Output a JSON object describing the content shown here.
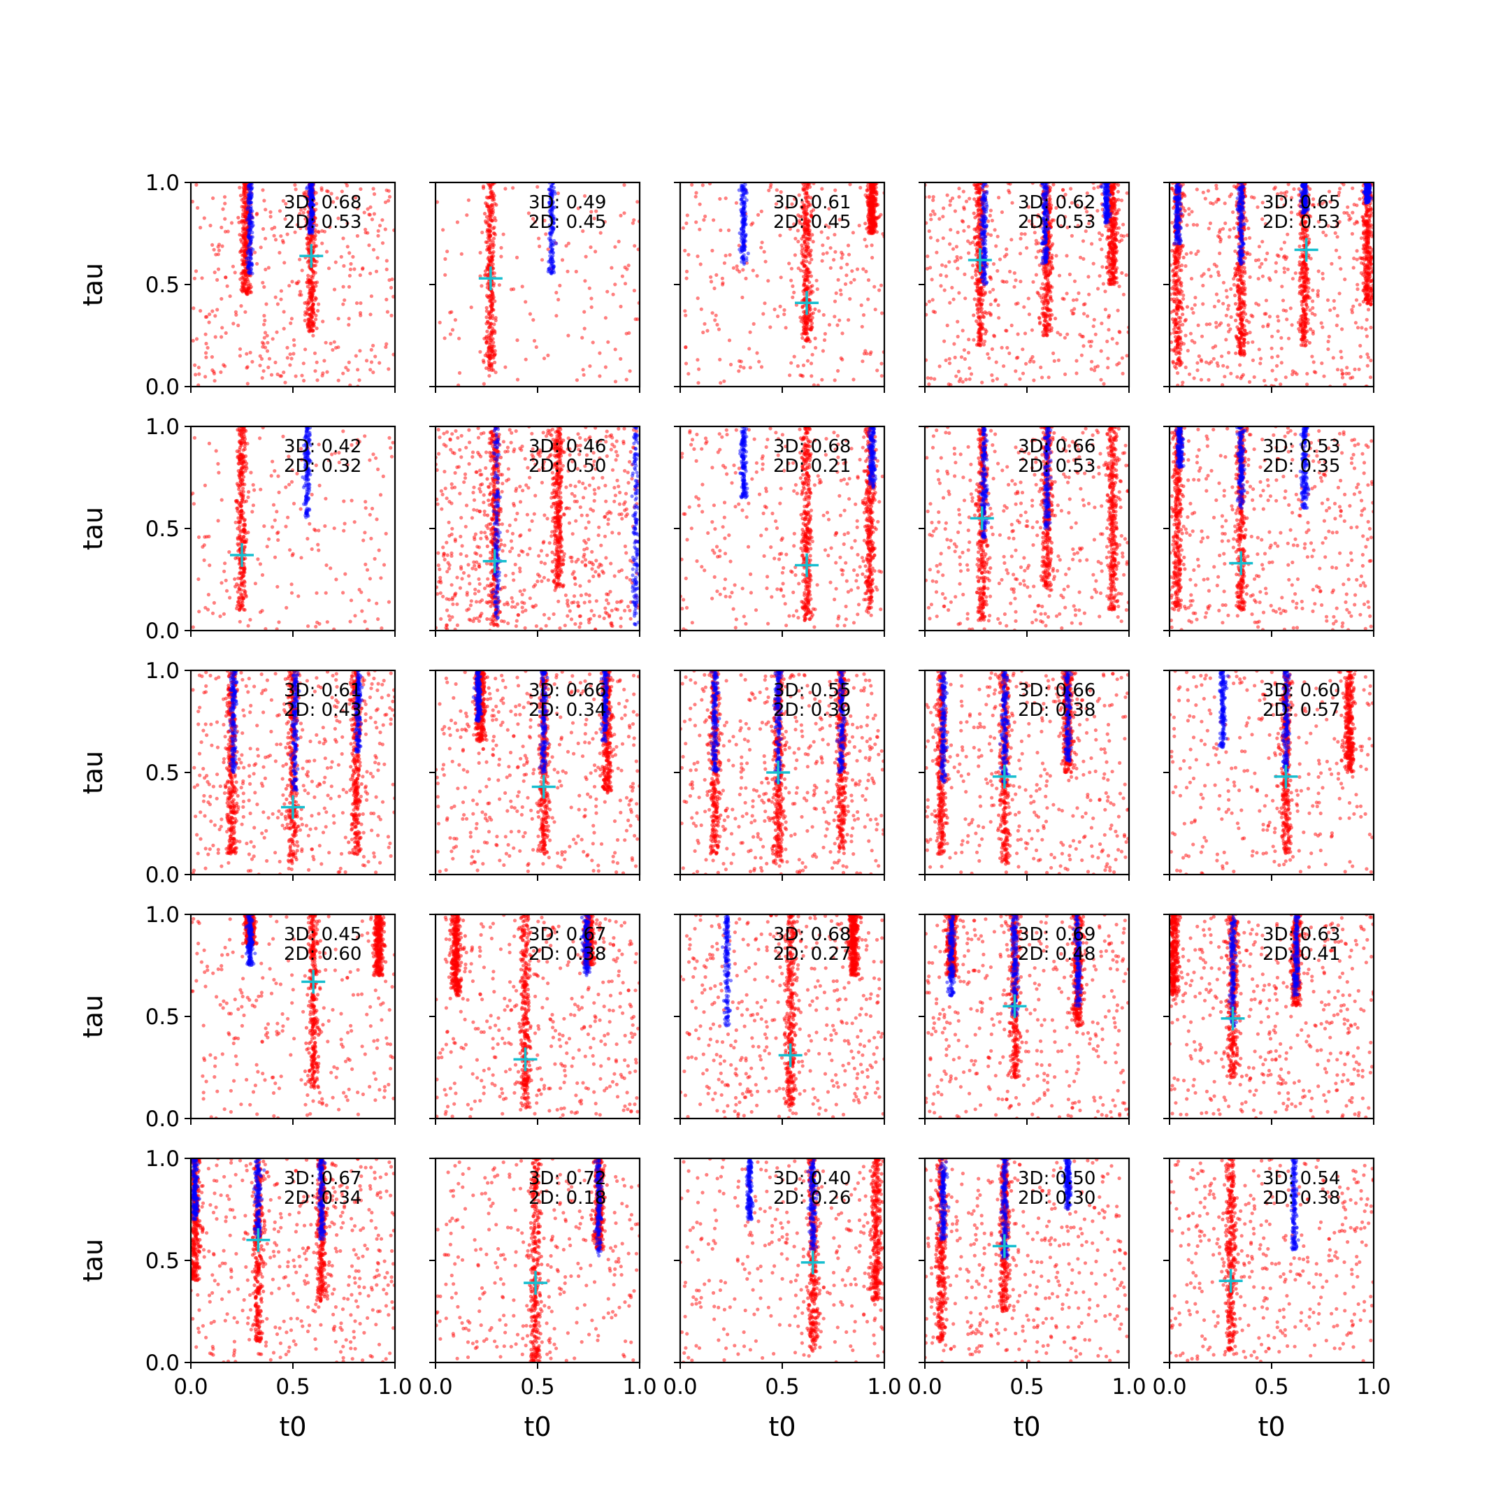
{
  "chart_data": {
    "type": "scatter",
    "grid_rows": 5,
    "grid_cols": 5,
    "xlabel": "t0",
    "ylabel": "tau",
    "xlim": [
      0,
      1
    ],
    "ylim": [
      0,
      1
    ],
    "xticks": [
      "0.0",
      "0.5",
      "1.0"
    ],
    "yticks": [
      "0.0",
      "0.5",
      "1.0"
    ],
    "colors": {
      "red_points": "#ff0000",
      "blue_points": "#0000ff",
      "marker": "#17becf"
    },
    "panels": [
      {
        "score_3d": "3D: 0.68",
        "score_2d": "2D: 0.53",
        "marker": [
          0.59,
          0.64
        ],
        "red_columns": [
          [
            0.27,
            0.45
          ],
          [
            0.59,
            0.27
          ]
        ],
        "blue_columns": [
          [
            0.29,
            0.55
          ],
          [
            0.59,
            0.75
          ]
        ],
        "red_scatter": 0.25
      },
      {
        "score_3d": "3D: 0.49",
        "score_2d": "2D: 0.45",
        "marker": [
          0.27,
          0.53
        ],
        "red_columns": [
          [
            0.27,
            0.08
          ]
        ],
        "blue_columns": [
          [
            0.57,
            0.55
          ]
        ],
        "red_scatter": 0.02
      },
      {
        "score_3d": "3D: 0.61",
        "score_2d": "2D: 0.45",
        "marker": [
          0.62,
          0.41
        ],
        "red_columns": [
          [
            0.62,
            0.22
          ],
          [
            0.94,
            0.75
          ]
        ],
        "blue_columns": [
          [
            0.31,
            0.6
          ]
        ],
        "red_scatter": 0.15
      },
      {
        "score_3d": "3D: 0.62",
        "score_2d": "2D: 0.53",
        "marker": [
          0.27,
          0.62
        ],
        "red_columns": [
          [
            0.27,
            0.2
          ],
          [
            0.6,
            0.25
          ],
          [
            0.92,
            0.5
          ]
        ],
        "blue_columns": [
          [
            0.29,
            0.5
          ],
          [
            0.59,
            0.6
          ],
          [
            0.89,
            0.8
          ]
        ],
        "red_scatter": 0.3
      },
      {
        "score_3d": "3D: 0.65",
        "score_2d": "2D: 0.53",
        "marker": [
          0.67,
          0.67
        ],
        "red_columns": [
          [
            0.04,
            0.1
          ],
          [
            0.35,
            0.15
          ],
          [
            0.66,
            0.2
          ],
          [
            0.97,
            0.4
          ]
        ],
        "blue_columns": [
          [
            0.04,
            0.7
          ],
          [
            0.35,
            0.6
          ],
          [
            0.66,
            0.85
          ],
          [
            0.97,
            0.9
          ]
        ],
        "red_scatter": 0.35
      },
      {
        "score_3d": "3D: 0.42",
        "score_2d": "2D: 0.32",
        "marker": [
          0.25,
          0.37
        ],
        "red_columns": [
          [
            0.25,
            0.1
          ]
        ],
        "blue_columns": [
          [
            0.57,
            0.55
          ]
        ],
        "red_scatter": 0.08
      },
      {
        "score_3d": "3D: 0.46",
        "score_2d": "2D: 0.50",
        "marker": [
          0.29,
          0.34
        ],
        "red_columns": [
          [
            0.29,
            0.02
          ],
          [
            0.6,
            0.2
          ]
        ],
        "blue_columns": [
          [
            0.3,
            0.05
          ],
          [
            0.98,
            0.02
          ]
        ],
        "red_scatter": 0.6
      },
      {
        "score_3d": "3D: 0.68",
        "score_2d": "2D: 0.21",
        "marker": [
          0.62,
          0.32
        ],
        "red_columns": [
          [
            0.62,
            0.05
          ],
          [
            0.93,
            0.1
          ]
        ],
        "blue_columns": [
          [
            0.31,
            0.65
          ],
          [
            0.94,
            0.7
          ]
        ],
        "red_scatter": 0.2
      },
      {
        "score_3d": "3D: 0.66",
        "score_2d": "2D: 0.53",
        "marker": [
          0.28,
          0.55
        ],
        "red_columns": [
          [
            0.28,
            0.05
          ],
          [
            0.6,
            0.2
          ],
          [
            0.92,
            0.1
          ]
        ],
        "blue_columns": [
          [
            0.29,
            0.45
          ],
          [
            0.6,
            0.5
          ]
        ],
        "red_scatter": 0.3
      },
      {
        "score_3d": "3D: 0.53",
        "score_2d": "2D: 0.35",
        "marker": [
          0.35,
          0.33
        ],
        "red_columns": [
          [
            0.04,
            0.1
          ],
          [
            0.35,
            0.1
          ]
        ],
        "blue_columns": [
          [
            0.05,
            0.8
          ],
          [
            0.35,
            0.6
          ],
          [
            0.66,
            0.6
          ]
        ],
        "red_scatter": 0.3
      },
      {
        "score_3d": "3D: 0.61",
        "score_2d": "2D: 0.43",
        "marker": [
          0.5,
          0.33
        ],
        "red_columns": [
          [
            0.2,
            0.1
          ],
          [
            0.5,
            0.05
          ],
          [
            0.81,
            0.1
          ]
        ],
        "blue_columns": [
          [
            0.21,
            0.5
          ],
          [
            0.51,
            0.4
          ],
          [
            0.82,
            0.6
          ]
        ],
        "red_scatter": 0.35
      },
      {
        "score_3d": "3D: 0.66",
        "score_2d": "2D: 0.34",
        "marker": [
          0.53,
          0.43
        ],
        "red_columns": [
          [
            0.22,
            0.65
          ],
          [
            0.53,
            0.1
          ],
          [
            0.84,
            0.4
          ]
        ],
        "blue_columns": [
          [
            0.21,
            0.75
          ],
          [
            0.53,
            0.5
          ],
          [
            0.83,
            0.65
          ]
        ],
        "red_scatter": 0.3
      },
      {
        "score_3d": "3D: 0.55",
        "score_2d": "2D: 0.39",
        "marker": [
          0.48,
          0.5
        ],
        "red_columns": [
          [
            0.17,
            0.1
          ],
          [
            0.48,
            0.05
          ],
          [
            0.79,
            0.1
          ]
        ],
        "blue_columns": [
          [
            0.17,
            0.5
          ],
          [
            0.48,
            0.45
          ],
          [
            0.79,
            0.5
          ]
        ],
        "red_scatter": 0.35
      },
      {
        "score_3d": "3D: 0.66",
        "score_2d": "2D: 0.38",
        "marker": [
          0.39,
          0.48
        ],
        "red_columns": [
          [
            0.08,
            0.1
          ],
          [
            0.39,
            0.05
          ],
          [
            0.7,
            0.5
          ]
        ],
        "blue_columns": [
          [
            0.09,
            0.45
          ],
          [
            0.39,
            0.45
          ],
          [
            0.7,
            0.55
          ]
        ],
        "red_scatter": 0.3
      },
      {
        "score_3d": "3D: 0.60",
        "score_2d": "2D: 0.57",
        "marker": [
          0.57,
          0.48
        ],
        "red_columns": [
          [
            0.57,
            0.1
          ],
          [
            0.88,
            0.5
          ]
        ],
        "blue_columns": [
          [
            0.26,
            0.62
          ],
          [
            0.57,
            0.5
          ]
        ],
        "red_scatter": 0.2
      },
      {
        "score_3d": "3D: 0.45",
        "score_2d": "2D: 0.60",
        "marker": [
          0.6,
          0.67
        ],
        "red_columns": [
          [
            0.29,
            0.85
          ],
          [
            0.6,
            0.15
          ],
          [
            0.92,
            0.7
          ]
        ],
        "blue_columns": [
          [
            0.29,
            0.75
          ]
        ],
        "red_scatter": 0.15
      },
      {
        "score_3d": "3D: 0.67",
        "score_2d": "2D: 0.38",
        "marker": [
          0.44,
          0.29
        ],
        "red_columns": [
          [
            0.44,
            0.05
          ],
          [
            0.75,
            0.75
          ],
          [
            0.1,
            0.6
          ]
        ],
        "blue_columns": [
          [
            0.74,
            0.7
          ]
        ],
        "red_scatter": 0.3
      },
      {
        "score_3d": "3D: 0.68",
        "score_2d": "2D: 0.27",
        "marker": [
          0.54,
          0.31
        ],
        "red_columns": [
          [
            0.54,
            0.05
          ],
          [
            0.85,
            0.7
          ]
        ],
        "blue_columns": [
          [
            0.23,
            0.45
          ]
        ],
        "red_scatter": 0.35
      },
      {
        "score_3d": "3D: 0.69",
        "score_2d": "2D: 0.48",
        "marker": [
          0.44,
          0.55
        ],
        "red_columns": [
          [
            0.13,
            0.7
          ],
          [
            0.44,
            0.2
          ],
          [
            0.75,
            0.45
          ]
        ],
        "blue_columns": [
          [
            0.13,
            0.6
          ],
          [
            0.44,
            0.5
          ],
          [
            0.75,
            0.55
          ]
        ],
        "red_scatter": 0.3
      },
      {
        "score_3d": "3D: 0.63",
        "score_2d": "2D: 0.41",
        "marker": [
          0.31,
          0.49
        ],
        "red_columns": [
          [
            0.31,
            0.2
          ],
          [
            0.62,
            0.55
          ],
          [
            0.02,
            0.6
          ]
        ],
        "blue_columns": [
          [
            0.31,
            0.45
          ],
          [
            0.62,
            0.6
          ]
        ],
        "red_scatter": 0.35
      },
      {
        "score_3d": "3D: 0.67",
        "score_2d": "2D: 0.34",
        "marker": [
          0.33,
          0.6
        ],
        "red_columns": [
          [
            0.02,
            0.4
          ],
          [
            0.33,
            0.1
          ],
          [
            0.64,
            0.3
          ]
        ],
        "blue_columns": [
          [
            0.02,
            0.7
          ],
          [
            0.33,
            0.6
          ],
          [
            0.64,
            0.6
          ]
        ],
        "red_scatter": 0.35
      },
      {
        "score_3d": "3D: 0.72",
        "score_2d": "2D: 0.18",
        "marker": [
          0.49,
          0.39
        ],
        "red_columns": [
          [
            0.49,
            0.0
          ],
          [
            0.8,
            0.55
          ]
        ],
        "blue_columns": [
          [
            0.8,
            0.52
          ]
        ],
        "red_scatter": 0.2
      },
      {
        "score_3d": "3D: 0.40",
        "score_2d": "2D: 0.26",
        "marker": [
          0.65,
          0.49
        ],
        "red_columns": [
          [
            0.65,
            0.05
          ],
          [
            0.96,
            0.3
          ]
        ],
        "blue_columns": [
          [
            0.34,
            0.7
          ],
          [
            0.65,
            0.55
          ]
        ],
        "red_scatter": 0.2
      },
      {
        "score_3d": "3D: 0.50",
        "score_2d": "2D: 0.30",
        "marker": [
          0.39,
          0.57
        ],
        "red_columns": [
          [
            0.08,
            0.1
          ],
          [
            0.39,
            0.25
          ]
        ],
        "blue_columns": [
          [
            0.09,
            0.6
          ],
          [
            0.39,
            0.5
          ],
          [
            0.7,
            0.75
          ]
        ],
        "red_scatter": 0.3
      },
      {
        "score_3d": "3D: 0.54",
        "score_2d": "2D: 0.38",
        "marker": [
          0.3,
          0.4
        ],
        "red_columns": [
          [
            0.3,
            0.05
          ]
        ],
        "blue_columns": [
          [
            0.61,
            0.55
          ]
        ],
        "red_scatter": 0.3
      }
    ]
  }
}
